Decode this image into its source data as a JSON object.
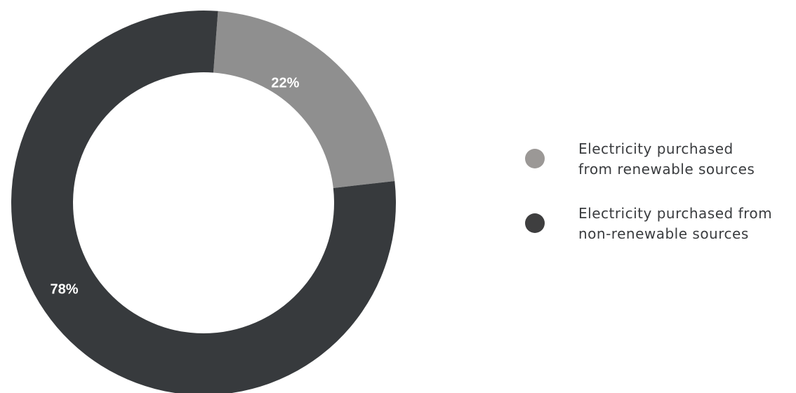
{
  "chart_data": {
    "type": "pie",
    "variant": "donut",
    "categories": [
      "Electricity purchased from renewable sources",
      "Electricity purchased from non-renewable sources"
    ],
    "values": [
      22,
      78
    ],
    "value_labels": [
      "22%",
      "78%"
    ],
    "colors": [
      "#8f8f8f",
      "#373a3d"
    ],
    "legend_position": "right",
    "legend": [
      {
        "lines": [
          "Electricity purchased",
          "from renewable sources"
        ],
        "swatch_color": "#9b9896"
      },
      {
        "lines": [
          "Electricity purchased from",
          "non-renewable sources"
        ],
        "swatch_color": "#3e3e3f"
      }
    ]
  }
}
